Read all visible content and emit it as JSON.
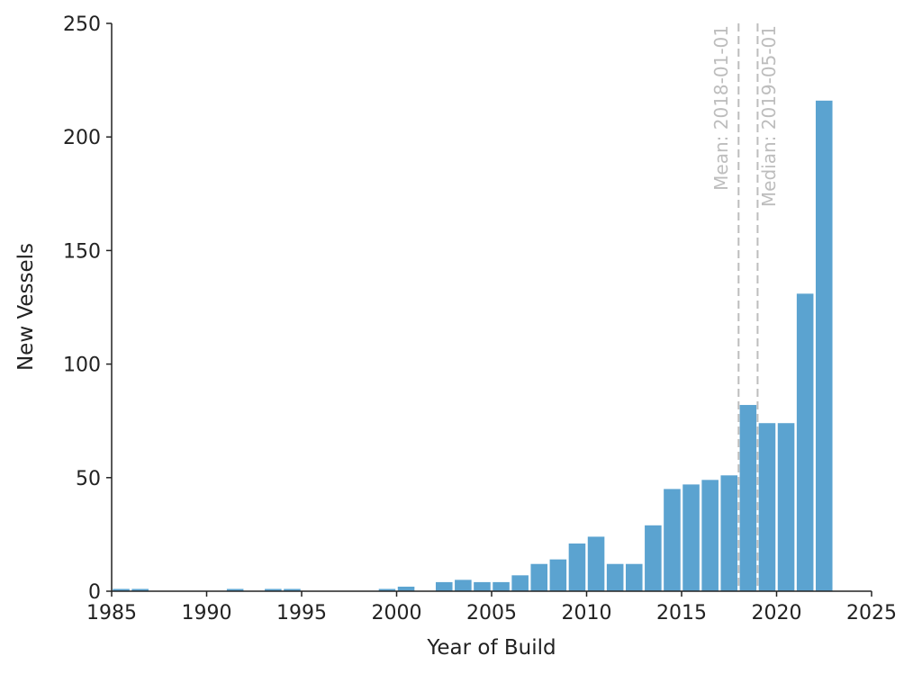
{
  "chart_data": {
    "type": "bar",
    "xlabel": "Year of Build",
    "ylabel": "New Vessels",
    "xlim": [
      1985,
      2025
    ],
    "ylim": [
      0,
      250
    ],
    "xticks": [
      1985,
      1990,
      1995,
      2000,
      2005,
      2010,
      2015,
      2020,
      2025
    ],
    "yticks": [
      0,
      50,
      100,
      150,
      200,
      250
    ],
    "grid": false,
    "bar_color": "#5ba3d0",
    "years": [
      1985,
      1986,
      1991,
      1993,
      1994,
      1999,
      2000,
      2002,
      2003,
      2004,
      2005,
      2006,
      2007,
      2008,
      2009,
      2010,
      2011,
      2012,
      2013,
      2014,
      2015,
      2016,
      2017,
      2018,
      2019,
      2020,
      2021,
      2022
    ],
    "values": [
      1,
      1,
      1,
      1,
      1,
      1,
      2,
      4,
      5,
      4,
      4,
      7,
      12,
      14,
      21,
      24,
      12,
      12,
      29,
      45,
      47,
      49,
      51,
      82,
      74,
      74,
      131,
      216
    ],
    "reference_lines": [
      {
        "label": "Mean: 2018-01-01",
        "x": 2018.0,
        "color": "#bdbdbd",
        "style": "dashed"
      },
      {
        "label": "Median: 2019-05-01",
        "x": 2019.0,
        "color": "#bdbdbd",
        "style": "dashed"
      }
    ]
  }
}
